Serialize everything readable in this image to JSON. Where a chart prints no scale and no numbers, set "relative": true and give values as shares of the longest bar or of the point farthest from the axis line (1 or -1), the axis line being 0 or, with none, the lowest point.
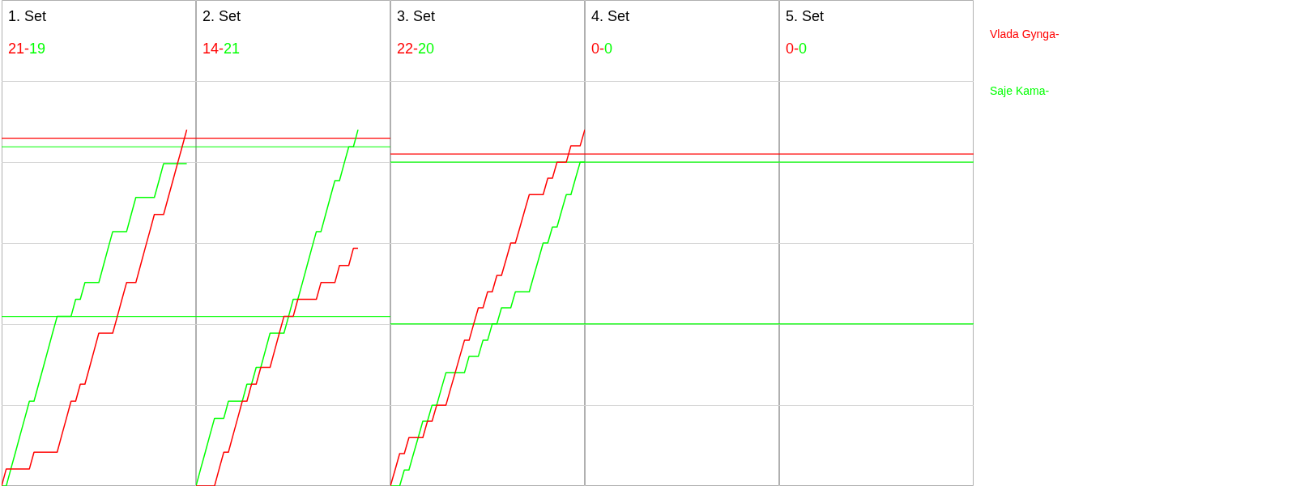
{
  "chart_data": [
    {
      "type": "line",
      "title": "1. Set",
      "annotations": [
        "21-",
        "19"
      ],
      "relative": true,
      "grid": "y",
      "tick_labels": false,
      "line_style": "solid",
      "categories": [
        null,
        null,
        null,
        null,
        null,
        null,
        null,
        null,
        null,
        null,
        null,
        null,
        null,
        null,
        null,
        null,
        null,
        null,
        null,
        null,
        null,
        null,
        null,
        null,
        null,
        null,
        null,
        null,
        null,
        null,
        null,
        null,
        null,
        null,
        null,
        null,
        null,
        null,
        null,
        null,
        null,
        null,
        null
      ],
      "ref_lines": [
        {
          "axis": "y",
          "value": 0.976,
          "color": "#ff0000"
        },
        {
          "axis": "y",
          "value": 0.952,
          "color": "#00ff00"
        },
        {
          "axis": "y",
          "value": 0.476,
          "color": "#00ff00"
        }
      ],
      "series": [
        {
          "name": "Vlada Gynga-",
          "color": "#ff0000",
          "values": [
            0,
            0.048,
            0.048,
            0.048,
            0.048,
            0.048,
            0.048,
            0.095,
            0.095,
            0.095,
            0.095,
            0.095,
            0.095,
            0.143,
            0.19,
            0.238,
            0.238,
            0.286,
            0.286,
            0.333,
            0.381,
            0.429,
            0.429,
            0.429,
            0.429,
            0.476,
            0.524,
            0.571,
            0.571,
            0.571,
            0.619,
            0.667,
            0.714,
            0.762,
            0.762,
            0.762,
            0.81,
            0.857,
            0.905,
            0.952,
            1,
            null,
            null
          ]
        },
        {
          "name": "Saje Kama-",
          "color": "#00ff00",
          "values": [
            0,
            0,
            0.048,
            0.095,
            0.143,
            0.19,
            0.238,
            0.238,
            0.286,
            0.333,
            0.381,
            0.429,
            0.476,
            0.476,
            0.476,
            0.476,
            0.524,
            0.524,
            0.571,
            0.571,
            0.571,
            0.571,
            0.619,
            0.667,
            0.714,
            0.714,
            0.714,
            0.714,
            0.762,
            0.81,
            0.81,
            0.81,
            0.81,
            0.81,
            0.857,
            0.905,
            0.905,
            0.905,
            0.905,
            0.905,
            0.905,
            null,
            null
          ]
        }
      ]
    },
    {
      "type": "line",
      "title": "2. Set",
      "annotations": [
        "14-",
        "21"
      ],
      "relative": true,
      "grid": "y",
      "tick_labels": false,
      "line_style": "solid",
      "categories": [
        null,
        null,
        null,
        null,
        null,
        null,
        null,
        null,
        null,
        null,
        null,
        null,
        null,
        null,
        null,
        null,
        null,
        null,
        null,
        null,
        null,
        null,
        null,
        null,
        null,
        null,
        null,
        null,
        null,
        null,
        null,
        null,
        null,
        null,
        null,
        null,
        null,
        null,
        null,
        null,
        null,
        null,
        null
      ],
      "ref_lines": [
        {
          "axis": "y",
          "value": 0.976,
          "color": "#ff0000"
        },
        {
          "axis": "y",
          "value": 0.952,
          "color": "#00ff00"
        },
        {
          "axis": "y",
          "value": 0.476,
          "color": "#00ff00"
        }
      ],
      "series": [
        {
          "color": "#ff0000",
          "values": [
            0,
            0,
            0,
            0,
            0,
            0.048,
            0.095,
            0.095,
            0.143,
            0.19,
            0.238,
            0.238,
            0.286,
            0.286,
            0.333,
            0.333,
            0.333,
            0.381,
            0.429,
            0.476,
            0.476,
            0.476,
            0.524,
            0.524,
            0.524,
            0.524,
            0.524,
            0.571,
            0.571,
            0.571,
            0.571,
            0.619,
            0.619,
            0.619,
            0.667,
            0.667,
            null,
            null,
            null,
            null,
            null,
            null,
            null
          ]
        },
        {
          "color": "#00ff00",
          "values": [
            0,
            0.048,
            0.095,
            0.143,
            0.19,
            0.19,
            0.19,
            0.238,
            0.238,
            0.238,
            0.238,
            0.286,
            0.286,
            0.333,
            0.333,
            0.381,
            0.429,
            0.429,
            0.429,
            0.429,
            0.476,
            0.524,
            0.524,
            0.571,
            0.619,
            0.667,
            0.714,
            0.714,
            0.762,
            0.81,
            0.857,
            0.857,
            0.905,
            0.952,
            0.952,
            1,
            null,
            null,
            null,
            null,
            null,
            null,
            null
          ]
        }
      ]
    },
    {
      "type": "line",
      "title": "3. Set",
      "annotations": [
        "22-",
        "20"
      ],
      "relative": true,
      "grid": "y",
      "tick_labels": false,
      "line_style": "solid",
      "categories": [
        null,
        null,
        null,
        null,
        null,
        null,
        null,
        null,
        null,
        null,
        null,
        null,
        null,
        null,
        null,
        null,
        null,
        null,
        null,
        null,
        null,
        null,
        null,
        null,
        null,
        null,
        null,
        null,
        null,
        null,
        null,
        null,
        null,
        null,
        null,
        null,
        null,
        null,
        null,
        null,
        null,
        null,
        null
      ],
      "ref_lines": [
        {
          "axis": "y",
          "value": 0.932,
          "color": "#ff0000"
        },
        {
          "axis": "y",
          "value": 0.909,
          "color": "#00ff00"
        },
        {
          "axis": "y",
          "value": 0.455,
          "color": "#00ff00"
        }
      ],
      "series": [
        {
          "color": "#ff0000",
          "values": [
            0,
            0.045,
            0.091,
            0.091,
            0.136,
            0.136,
            0.136,
            0.136,
            0.182,
            0.182,
            0.227,
            0.227,
            0.227,
            0.273,
            0.318,
            0.364,
            0.409,
            0.409,
            0.455,
            0.5,
            0.5,
            0.545,
            0.545,
            0.591,
            0.591,
            0.636,
            0.682,
            0.682,
            0.727,
            0.773,
            0.818,
            0.818,
            0.818,
            0.818,
            0.864,
            0.864,
            0.909,
            0.909,
            0.909,
            0.955,
            0.955,
            0.955,
            1
          ]
        },
        {
          "color": "#00ff00",
          "values": [
            0,
            0,
            0,
            0.045,
            0.045,
            0.091,
            0.136,
            0.182,
            0.182,
            0.227,
            0.227,
            0.273,
            0.318,
            0.318,
            0.318,
            0.318,
            0.318,
            0.364,
            0.364,
            0.364,
            0.409,
            0.409,
            0.455,
            0.455,
            0.5,
            0.5,
            0.5,
            0.545,
            0.545,
            0.545,
            0.545,
            0.591,
            0.636,
            0.682,
            0.682,
            0.727,
            0.727,
            0.773,
            0.818,
            0.818,
            0.864,
            0.909,
            0.909
          ]
        }
      ]
    },
    {
      "type": "other",
      "title": "4. Set",
      "annotations": [
        "0-",
        "0"
      ],
      "series": [
        {
          "color": "#ff0000"
        },
        {
          "color": "#00ff00"
        }
      ]
    },
    {
      "type": "other",
      "title": "5. Set",
      "annotations": [
        "0-",
        "0"
      ],
      "series": [
        {
          "color": "#ff0000"
        },
        {
          "color": "#00ff00"
        }
      ]
    }
  ]
}
